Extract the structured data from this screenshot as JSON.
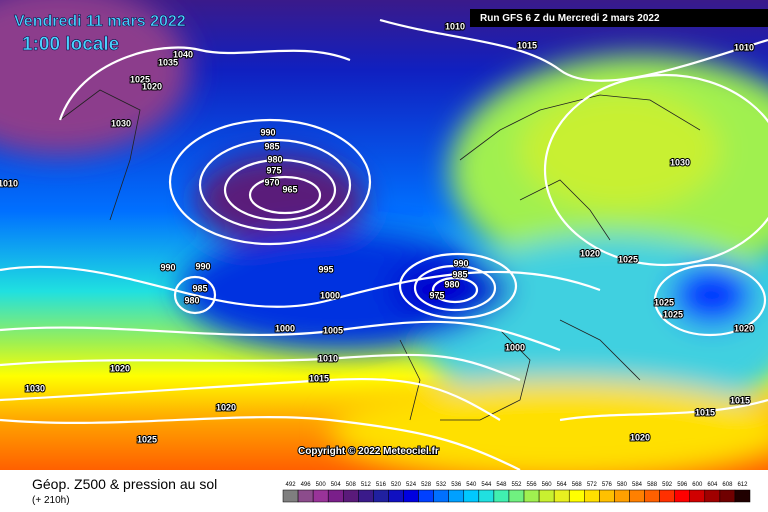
{
  "header": {
    "date": "Vendredi 11 mars 2022",
    "time": "1:00 locale",
    "run": "Run GFS 6 Z du Mercredi 2 mars 2022"
  },
  "copyright": "Copyright © 2022 Meteociel.fr",
  "footer": {
    "title": "Géop. Z500 & pression au sol",
    "lead": "(+ 210h)"
  },
  "legend": {
    "labels": [
      492,
      496,
      500,
      504,
      508,
      512,
      516,
      520,
      524,
      528,
      532,
      536,
      540,
      544,
      548,
      552,
      556,
      560,
      564,
      568,
      572,
      576,
      580,
      584,
      588,
      592,
      596,
      600,
      604,
      608,
      612
    ],
    "colors": [
      "#7f7f7f",
      "#8c4c8c",
      "#993399",
      "#7a1f8a",
      "#5a1a7a",
      "#3a1a8a",
      "#2020a0",
      "#1010c0",
      "#0000e0",
      "#0040ff",
      "#0070ff",
      "#00a0ff",
      "#00c8ff",
      "#20e0e0",
      "#40f0b0",
      "#70f080",
      "#a0f050",
      "#c8f030",
      "#e8f020",
      "#ffff00",
      "#ffe000",
      "#ffc000",
      "#ffa000",
      "#ff8000",
      "#ff6000",
      "#ff3000",
      "#ff0000",
      "#d00000",
      "#a00000",
      "#700000",
      "#200000"
    ]
  },
  "isobar_labels": [
    "1010",
    "1015",
    "1040",
    "1035",
    "1025",
    "1020",
    "1030",
    "1010",
    "990",
    "985",
    "980",
    "975",
    "970",
    "965",
    "990",
    "990",
    "985",
    "980",
    "995",
    "1000",
    "990",
    "985",
    "980",
    "975",
    "1000",
    "1005",
    "1010",
    "1015",
    "1020",
    "1020",
    "1030",
    "1025",
    "1000",
    "1020",
    "1025",
    "1030",
    "1025",
    "1025",
    "1020",
    "1015",
    "1015",
    "1020",
    "1010"
  ]
}
